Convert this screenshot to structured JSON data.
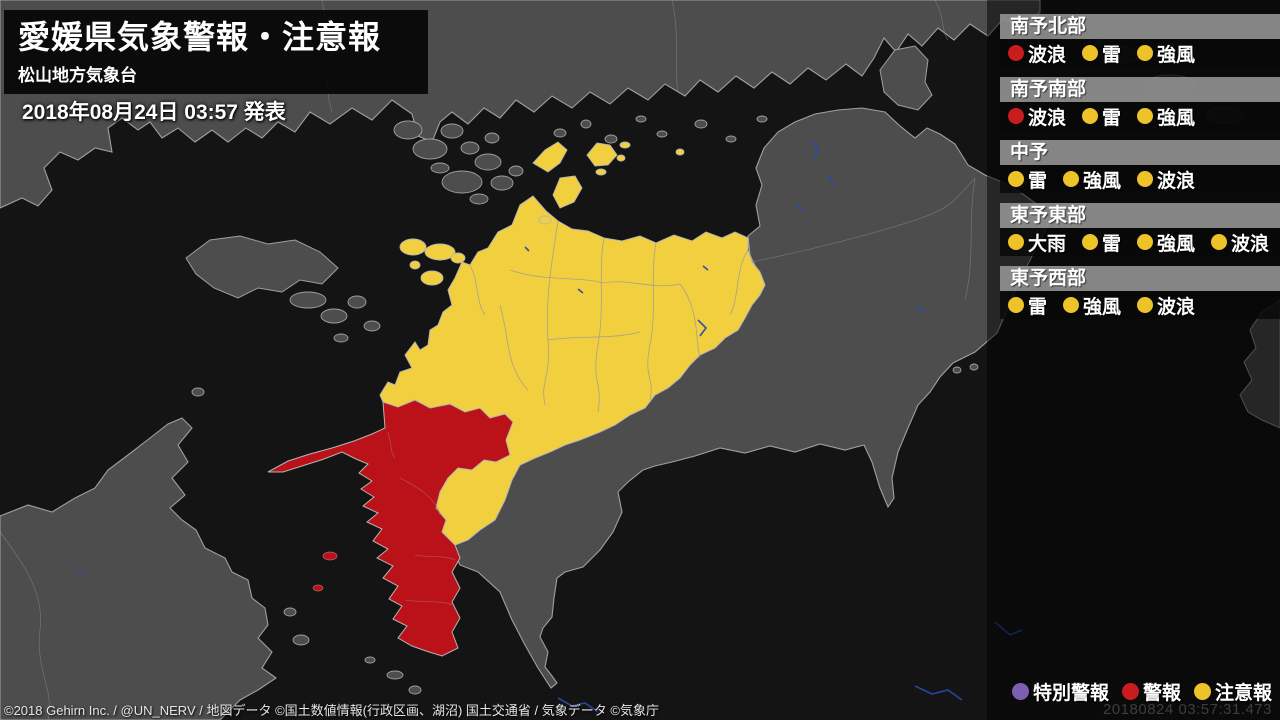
{
  "header": {
    "title": "愛媛県気象警報・注意報",
    "subtitle": "松山地方気象台",
    "issued": "2018年08月24日 03:57 発表"
  },
  "regions": [
    {
      "name": "南予北部",
      "warnings": [
        {
          "label": "波浪",
          "level": "warning"
        },
        {
          "label": "雷",
          "level": "advisory"
        },
        {
          "label": "強風",
          "level": "advisory"
        }
      ]
    },
    {
      "name": "南予南部",
      "warnings": [
        {
          "label": "波浪",
          "level": "warning"
        },
        {
          "label": "雷",
          "level": "advisory"
        },
        {
          "label": "強風",
          "level": "advisory"
        }
      ]
    },
    {
      "name": "中予",
      "warnings": [
        {
          "label": "雷",
          "level": "advisory"
        },
        {
          "label": "強風",
          "level": "advisory"
        },
        {
          "label": "波浪",
          "level": "advisory"
        }
      ]
    },
    {
      "name": "東予東部",
      "warnings": [
        {
          "label": "大雨",
          "level": "advisory"
        },
        {
          "label": "雷",
          "level": "advisory"
        },
        {
          "label": "強風",
          "level": "advisory"
        },
        {
          "label": "波浪",
          "level": "advisory"
        }
      ]
    },
    {
      "name": "東予西部",
      "warnings": [
        {
          "label": "雷",
          "level": "advisory"
        },
        {
          "label": "強風",
          "level": "advisory"
        },
        {
          "label": "波浪",
          "level": "advisory"
        }
      ]
    }
  ],
  "legend": {
    "items": [
      {
        "label": "特別警報",
        "level": "special"
      },
      {
        "label": "警報",
        "level": "warning"
      },
      {
        "label": "注意報",
        "level": "advisory"
      }
    ]
  },
  "levels": {
    "special": "#7d5fb0",
    "warning": "#c81c1f",
    "advisory": "#eec32a"
  },
  "map_colors": {
    "sea": "#141414",
    "land": "#4d4d4d",
    "advisory_area": "#f2cf3e",
    "warning_area": "#bb1118",
    "coastline": "#a5a5a5"
  },
  "footer": {
    "credit": "©2018 Gehirn Inc. / @UN_NERV / 地図データ ©国土数値情報(行政区画、湖沼) 国土交通省 / 気象データ ©気象庁",
    "timestamp": "20180824 03:57:31.473"
  }
}
